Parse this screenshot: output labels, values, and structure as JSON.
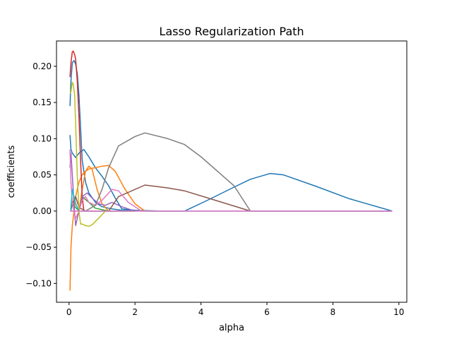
{
  "chart_data": {
    "type": "line",
    "title": "Lasso Regularization Path",
    "xlabel": "alpha",
    "ylabel": "coefficients",
    "xlim": [
      -0.38,
      10.24
    ],
    "ylim": [
      -0.126,
      0.235
    ],
    "xticks": [
      0,
      2,
      4,
      6,
      8,
      10
    ],
    "xtick_labels": [
      "0",
      "2",
      "4",
      "6",
      "8",
      "10"
    ],
    "yticks": [
      -0.1,
      -0.05,
      0.0,
      0.05,
      0.1,
      0.15,
      0.2
    ],
    "ytick_labels": [
      "−0.10",
      "−0.05",
      "0.00",
      "0.05",
      "0.10",
      "0.15",
      "0.20"
    ],
    "grid": false,
    "legend": "none",
    "series": [
      {
        "color": "#1f77b4",
        "x": [
          0.03,
          0.06,
          0.1,
          0.15,
          0.2,
          0.25,
          0.3,
          0.35,
          0.4,
          0.5,
          0.6,
          0.8,
          1.0,
          1.3,
          1.6,
          2.5,
          3.5
        ],
        "y": [
          0.145,
          0.18,
          0.205,
          0.208,
          0.203,
          0.19,
          0.16,
          0.115,
          0.07,
          0.04,
          0.025,
          0.012,
          0.006,
          0.003,
          0.001,
          0.0,
          0.0
        ]
      },
      {
        "color": "#1f77b4",
        "x": [
          0.03,
          0.06,
          0.1,
          0.2,
          0.3,
          0.45,
          0.6,
          0.8,
          1.0,
          1.2,
          1.4,
          1.6,
          2.0,
          2.8,
          3.5,
          4.2,
          5.0,
          5.5,
          6.1,
          6.5,
          7.5,
          8.5,
          9.8
        ],
        "y": [
          0.105,
          0.085,
          0.08,
          0.074,
          0.08,
          0.085,
          0.075,
          0.06,
          0.048,
          0.035,
          0.018,
          0.003,
          0.001,
          0.0,
          0.0,
          0.015,
          0.033,
          0.044,
          0.052,
          0.05,
          0.034,
          0.017,
          0.0
        ]
      },
      {
        "color": "#ff7f0e",
        "x": [
          0.03,
          0.06,
          0.1,
          0.15,
          0.2,
          0.3,
          0.4,
          0.5,
          0.6,
          0.8,
          1.0,
          1.2,
          1.4,
          1.7,
          2.0,
          2.3,
          3.0
        ],
        "y": [
          -0.11,
          -0.05,
          -0.02,
          0.0,
          0.02,
          0.04,
          0.05,
          0.055,
          0.058,
          0.06,
          0.062,
          0.063,
          0.055,
          0.03,
          0.01,
          0.0,
          0.0
        ]
      },
      {
        "color": "#ff7f0e",
        "x": [
          0.05,
          0.1,
          0.2,
          0.3,
          0.4,
          0.5,
          0.6,
          0.7,
          0.85,
          1.0,
          1.2
        ],
        "y": [
          0.0,
          0.03,
          0.01,
          0.0,
          0.03,
          0.055,
          0.062,
          0.058,
          0.03,
          0.01,
          0.0
        ]
      },
      {
        "color": "#2ca02c",
        "x": [
          0.05,
          0.1,
          0.2,
          0.3,
          0.4,
          0.6,
          0.8,
          1.2,
          1.4,
          2.0
        ],
        "y": [
          0.0,
          0.01,
          0.005,
          0.0,
          0.02,
          0.012,
          0.004,
          0.0,
          0.0,
          0.0
        ]
      },
      {
        "color": "#d62728",
        "x": [
          0.03,
          0.06,
          0.1,
          0.13,
          0.17,
          0.2,
          0.25,
          0.3,
          0.35,
          0.4,
          0.45,
          0.55,
          0.7,
          0.9,
          1.2,
          2.0
        ],
        "y": [
          0.185,
          0.205,
          0.22,
          0.221,
          0.216,
          0.21,
          0.18,
          0.13,
          0.07,
          0.02,
          0.0,
          0.0,
          0.0,
          0.0,
          0.0,
          0.0
        ]
      },
      {
        "color": "#9467bd",
        "x": [
          0.03,
          0.06,
          0.1,
          0.15,
          0.2,
          0.3,
          0.4,
          0.55,
          0.7,
          0.9,
          1.1,
          1.3,
          1.6,
          2.0
        ],
        "y": [
          0.06,
          0.08,
          0.05,
          0.01,
          -0.02,
          0.0,
          0.02,
          0.025,
          0.018,
          0.01,
          0.008,
          0.012,
          0.006,
          0.0
        ]
      },
      {
        "color": "#8c564b",
        "x": [
          0.05,
          0.1,
          0.2,
          0.3,
          0.5,
          0.6,
          1.2,
          1.5,
          2.3,
          3.0,
          3.5,
          4.5,
          5.5,
          9.8
        ],
        "y": [
          0.0,
          0.01,
          0.02,
          0.005,
          0.0,
          0.0,
          0.0,
          0.02,
          0.036,
          0.032,
          0.028,
          0.014,
          0.0,
          0.0
        ]
      },
      {
        "color": "#e377c2",
        "x": [
          0.03,
          0.06,
          0.1,
          0.15,
          0.2,
          0.3,
          0.4,
          0.5,
          0.6,
          0.8,
          1.0,
          1.3,
          1.5,
          1.8,
          2.2,
          3.0,
          9.8
        ],
        "y": [
          0.085,
          0.04,
          0.01,
          0.0,
          -0.01,
          0.0,
          0.015,
          0.02,
          0.012,
          0.008,
          0.015,
          0.03,
          0.028,
          0.012,
          0.0,
          0.0,
          0.0
        ]
      },
      {
        "color": "#7f7f7f",
        "x": [
          0.05,
          0.1,
          0.3,
          0.5,
          0.8,
          1.0,
          1.2,
          1.5,
          2.0,
          2.3,
          3.0,
          3.5,
          4.0,
          5.0,
          5.5,
          9.8
        ],
        "y": [
          0.0,
          0.0,
          0.0,
          0.0,
          0.008,
          0.03,
          0.06,
          0.09,
          0.103,
          0.108,
          0.1,
          0.092,
          0.075,
          0.035,
          0.0,
          0.0
        ]
      },
      {
        "color": "#bcbd22",
        "x": [
          0.03,
          0.06,
          0.1,
          0.13,
          0.17,
          0.2,
          0.25,
          0.3,
          0.35,
          0.4,
          0.5,
          0.6,
          0.7,
          0.85,
          1.0,
          1.1,
          1.5
        ],
        "y": [
          0.162,
          0.165,
          0.178,
          0.175,
          0.16,
          0.12,
          0.05,
          0.0,
          -0.018,
          -0.018,
          -0.02,
          -0.021,
          -0.019,
          -0.012,
          -0.005,
          0.0,
          0.0
        ]
      },
      {
        "color": "#17becf",
        "x": [
          0.05,
          0.1,
          0.2,
          0.3,
          0.4,
          9.8
        ],
        "y": [
          0.0,
          0.03,
          0.01,
          0.0,
          0.0,
          0.0
        ]
      },
      {
        "color": "#e377c2",
        "x": [
          0.03,
          0.1,
          0.5,
          1.0,
          3.0,
          9.8
        ],
        "y": [
          0.0,
          0.0,
          0.0,
          0.0,
          0.0,
          0.0
        ]
      }
    ]
  }
}
